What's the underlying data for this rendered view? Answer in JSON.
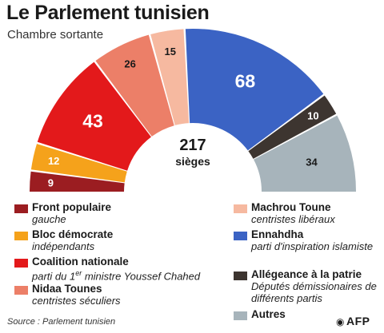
{
  "header": {
    "title": "Le Parlement tunisien",
    "subtitle": "Chambre sortante"
  },
  "chart_data": {
    "type": "pie",
    "shape": "hemicycle",
    "center_label": {
      "value": "217",
      "unit": "sièges"
    },
    "total": 217,
    "slices": [
      {
        "name": "Front populaire",
        "value": 9,
        "color": "#9b1d21"
      },
      {
        "name": "Bloc démocrate",
        "value": 12,
        "color": "#f5a21b"
      },
      {
        "name": "Coalition nationale",
        "value": 43,
        "color": "#e3191b"
      },
      {
        "name": "Nidaa Tounes",
        "value": 26,
        "color": "#ec7f68"
      },
      {
        "name": "Machrou Toune",
        "value": 15,
        "color": "#f6b9a0"
      },
      {
        "name": "Ennahdha",
        "value": 68,
        "color": "#3b63c4"
      },
      {
        "name": "Allégeance à la patrie",
        "value": 10,
        "color": "#3d3530"
      },
      {
        "name": "Autres",
        "value": 34,
        "color": "#a7b4bb"
      }
    ]
  },
  "legend": {
    "left": [
      {
        "name": "Front populaire",
        "desc": "gauche",
        "color": "#9b1d21"
      },
      {
        "name": "Bloc démocrate",
        "desc": "indépendants",
        "color": "#f5a21b"
      },
      {
        "name": "Coalition nationale",
        "desc_pre": "parti du 1",
        "desc_sup": "er",
        "desc_post": " ministre Youssef Chahed",
        "color": "#e3191b"
      },
      {
        "name": "Nidaa Tounes",
        "desc": "centristes séculiers",
        "color": "#ec7f68"
      }
    ],
    "right": [
      {
        "name": "Machrou Toune",
        "desc": "centristes libéraux",
        "color": "#f6b9a0"
      },
      {
        "name": "Ennahdha",
        "desc": "parti d'inspiration islamiste",
        "color": "#3b63c4"
      },
      {
        "name": "Allégeance à la patrie",
        "desc": "Députés démissionaires de différents partis",
        "color": "#3d3530"
      },
      {
        "name": "Autres",
        "desc": "",
        "color": "#a7b4bb"
      }
    ]
  },
  "footer": {
    "source": "Source : Parlement tunisien",
    "credit": "AFP",
    "credit_icon": "camera-icon"
  }
}
